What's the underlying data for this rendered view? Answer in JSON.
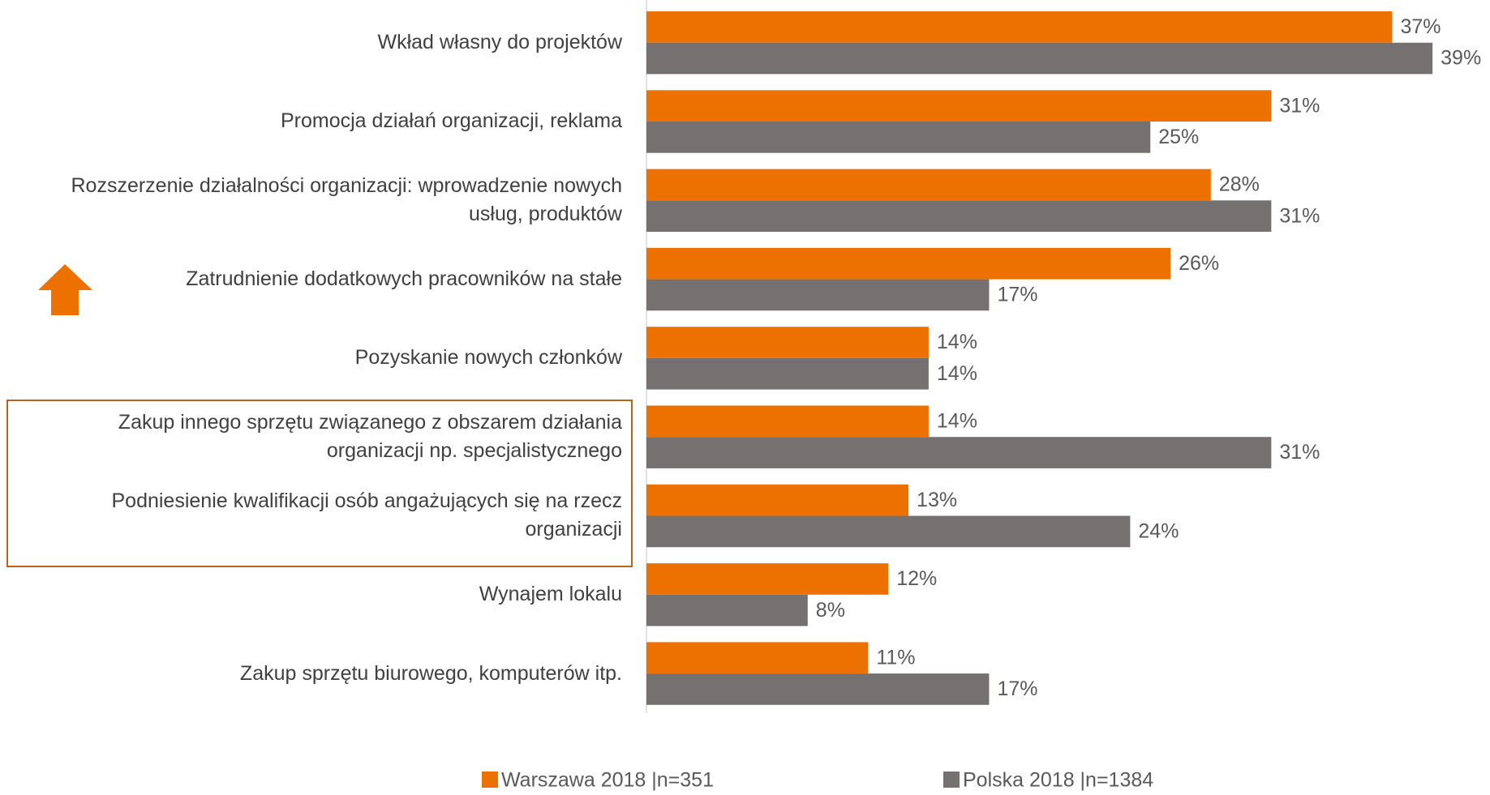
{
  "chart_data": {
    "type": "barh",
    "categories": [
      "Wkład własny do projektów",
      "Promocja działań organizacji, reklama",
      "Rozszerzenie działalności organizacji: wprowadzenie nowych usług, produktów",
      "Zatrudnienie dodatkowych pracowników na stałe",
      "Pozyskanie nowych członków",
      "Zakup innego sprzętu związanego z obszarem działania organizacji np. specjalistycznego",
      "Podniesienie kwalifikacji osób angażujących się na rzecz organizacji",
      "Wynajem lokalu",
      "Zakup sprzętu biurowego, komputerów itp."
    ],
    "series": [
      {
        "name": "Warszawa 2018 |n=351",
        "color": "#ed7100",
        "values": [
          37,
          31,
          28,
          26,
          14,
          14,
          13,
          12,
          11
        ],
        "value_labels": [
          "37%",
          "31%",
          "28%",
          "26%",
          "14%",
          "14%",
          "13%",
          "12%",
          "11%"
        ]
      },
      {
        "name": "Polska 2018 |n=1384",
        "color": "#767171",
        "values": [
          39,
          25,
          31,
          17,
          14,
          31,
          24,
          8,
          17
        ],
        "value_labels": [
          "39%",
          "25%",
          "31%",
          "17%",
          "14%",
          "31%",
          "24%",
          "8%",
          "17%"
        ]
      }
    ],
    "legend": "bottom"
  }
}
